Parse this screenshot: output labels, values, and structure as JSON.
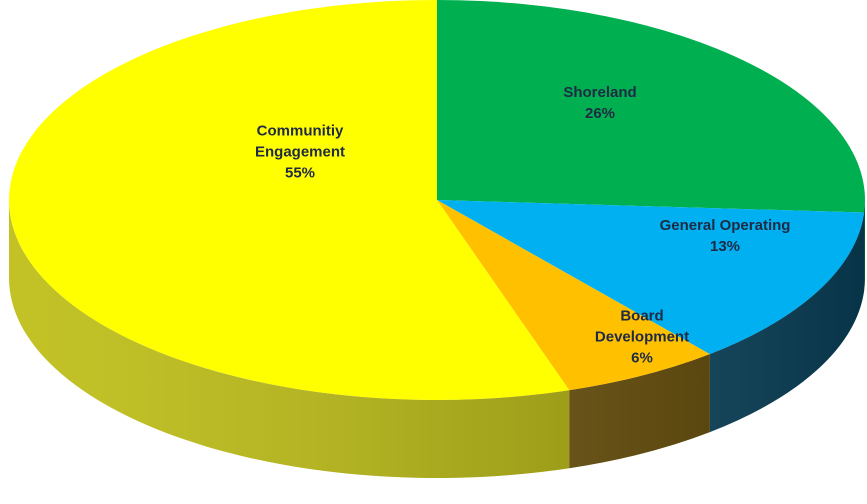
{
  "chart_data": {
    "type": "pie",
    "categories": [
      "Shoreland",
      "General Operating",
      "Board Development",
      "Communitiy Engagement"
    ],
    "values": [
      26,
      13,
      6,
      55
    ],
    "value_labels": [
      "26%",
      "13%",
      "6%",
      "55%"
    ],
    "colors": [
      "#00b050",
      "#00b0f0",
      "#ffc000",
      "#ffff00"
    ]
  }
}
